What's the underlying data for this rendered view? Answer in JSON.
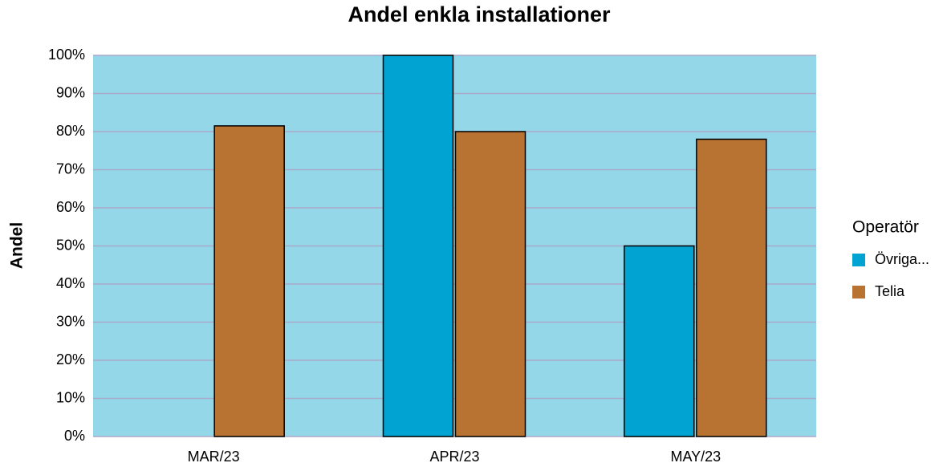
{
  "chart_data": {
    "type": "bar",
    "title": "Andel enkla installationer",
    "y_label": "Andel",
    "categories": [
      "MAR/23",
      "APR/23",
      "MAY/23"
    ],
    "series": [
      {
        "name": "Övriga...",
        "color": "#00a3d1",
        "values": [
          null,
          100,
          50
        ]
      },
      {
        "name": "Telia",
        "color": "#b87332",
        "values": [
          81.5,
          80,
          78
        ]
      }
    ],
    "ylim": [
      0,
      100
    ],
    "yticks": [
      {
        "value": 0,
        "label": "0%"
      },
      {
        "value": 10,
        "label": "10%"
      },
      {
        "value": 20,
        "label": "20%"
      },
      {
        "value": 30,
        "label": "30%"
      },
      {
        "value": 40,
        "label": "40%"
      },
      {
        "value": 50,
        "label": "50%"
      },
      {
        "value": 60,
        "label": "60%"
      },
      {
        "value": 70,
        "label": "70%"
      },
      {
        "value": 80,
        "label": "80%"
      },
      {
        "value": 90,
        "label": "90%"
      },
      {
        "value": 100,
        "label": "100%"
      }
    ],
    "grid": true,
    "legend_title": "Operatör",
    "legend": "right",
    "plot_background": "#93d7e8"
  }
}
